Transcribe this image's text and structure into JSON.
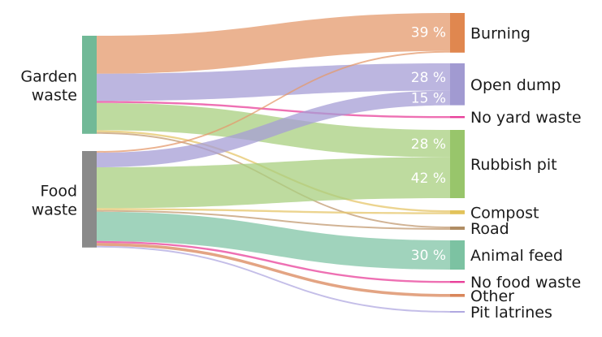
{
  "sources": [
    {
      "id": "garden",
      "label_lines": [
        "Garden",
        "waste"
      ],
      "color": "#71b997"
    },
    {
      "id": "food",
      "label_lines": [
        "Food",
        "waste"
      ],
      "color": "#8a8a8a"
    }
  ],
  "targets": [
    {
      "id": "burning",
      "label": "Burning",
      "color": "#e0874f"
    },
    {
      "id": "open_dump",
      "label": "Open dump",
      "color": "#a19ad1"
    },
    {
      "id": "no_yard_waste",
      "label": "No yard waste",
      "color": "#e8409a"
    },
    {
      "id": "rubbish_pit",
      "label": "Rubbish pit",
      "color": "#98c56b"
    },
    {
      "id": "compost",
      "label": "Compost",
      "color": "#e2c35b"
    },
    {
      "id": "road",
      "label": "Road",
      "color": "#b08d64"
    },
    {
      "id": "animal_feed",
      "label": "Animal feed",
      "color": "#7cc2a2"
    },
    {
      "id": "no_food_waste",
      "label": "No food waste",
      "color": "#e8409a"
    },
    {
      "id": "other",
      "label": "Other",
      "color": "#d9865a"
    },
    {
      "id": "pit_latrines",
      "label": "Pit latrines",
      "color": "#b0a8e0"
    }
  ],
  "flows": [
    {
      "source": "garden",
      "target": "burning",
      "value": 39,
      "color": "#e49a6c",
      "label": "39 %"
    },
    {
      "source": "garden",
      "target": "open_dump",
      "value": 28,
      "color": "#a59ed6",
      "label": "28 %"
    },
    {
      "source": "garden",
      "target": "no_yard_waste",
      "value": 2,
      "color": "#e8409a"
    },
    {
      "source": "garden",
      "target": "rubbish_pit",
      "value": 28,
      "color": "#a8cf7f",
      "label": "28 %"
    },
    {
      "source": "garden",
      "target": "compost",
      "value": 2,
      "color": "#e5c66a"
    },
    {
      "source": "garden",
      "target": "road",
      "value": 1,
      "color": "#c29a70"
    },
    {
      "source": "food",
      "target": "burning",
      "value": 1,
      "color": "#e49a6c"
    },
    {
      "source": "food",
      "target": "open_dump",
      "value": 15,
      "color": "#a59ed6",
      "label": "15 %"
    },
    {
      "source": "food",
      "target": "rubbish_pit",
      "value": 42,
      "color": "#a8cf7f",
      "label": "42 %"
    },
    {
      "source": "food",
      "target": "compost",
      "value": 2,
      "color": "#e5c66a"
    },
    {
      "source": "food",
      "target": "road",
      "value": 1,
      "color": "#c29a70"
    },
    {
      "source": "food",
      "target": "animal_feed",
      "value": 30,
      "color": "#80c4a6",
      "label": "30 %"
    },
    {
      "source": "food",
      "target": "no_food_waste",
      "value": 2,
      "color": "#e8409a"
    },
    {
      "source": "food",
      "target": "other",
      "value": 3,
      "color": "#d9865a"
    },
    {
      "source": "food",
      "target": "pit_latrines",
      "value": 1,
      "color": "#b0a8e0"
    }
  ]
}
